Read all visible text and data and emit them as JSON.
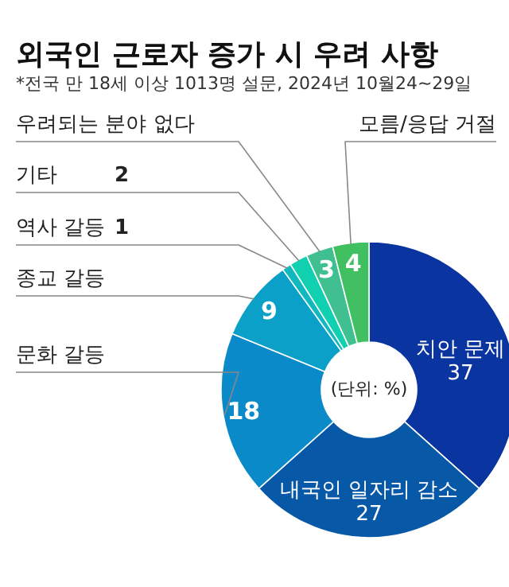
{
  "chart_data": {
    "type": "donut",
    "title": "외국인 근로자 증가 시 우려 사항",
    "subtitle": "*전국 만 18세 이상 1013명 설문, 2024년 10월24~29일",
    "categories": [
      "치안 문제",
      "내국인 일자리 감소",
      "문화 갈등",
      "종교 갈등",
      "역사 갈등",
      "기타",
      "우려되는 분야 없다",
      "모름/응답 거절"
    ],
    "values": [
      37,
      27,
      18,
      9,
      1,
      2,
      3,
      4
    ],
    "colors": [
      "#0a35a0",
      "#0858a8",
      "#0a8ac8",
      "#0aa0c8",
      "#10b8c0",
      "#10d0b0",
      "#40c090",
      "#40c060"
    ],
    "data_labels": true,
    "annotations": [
      "(단위: %)"
    ]
  }
}
